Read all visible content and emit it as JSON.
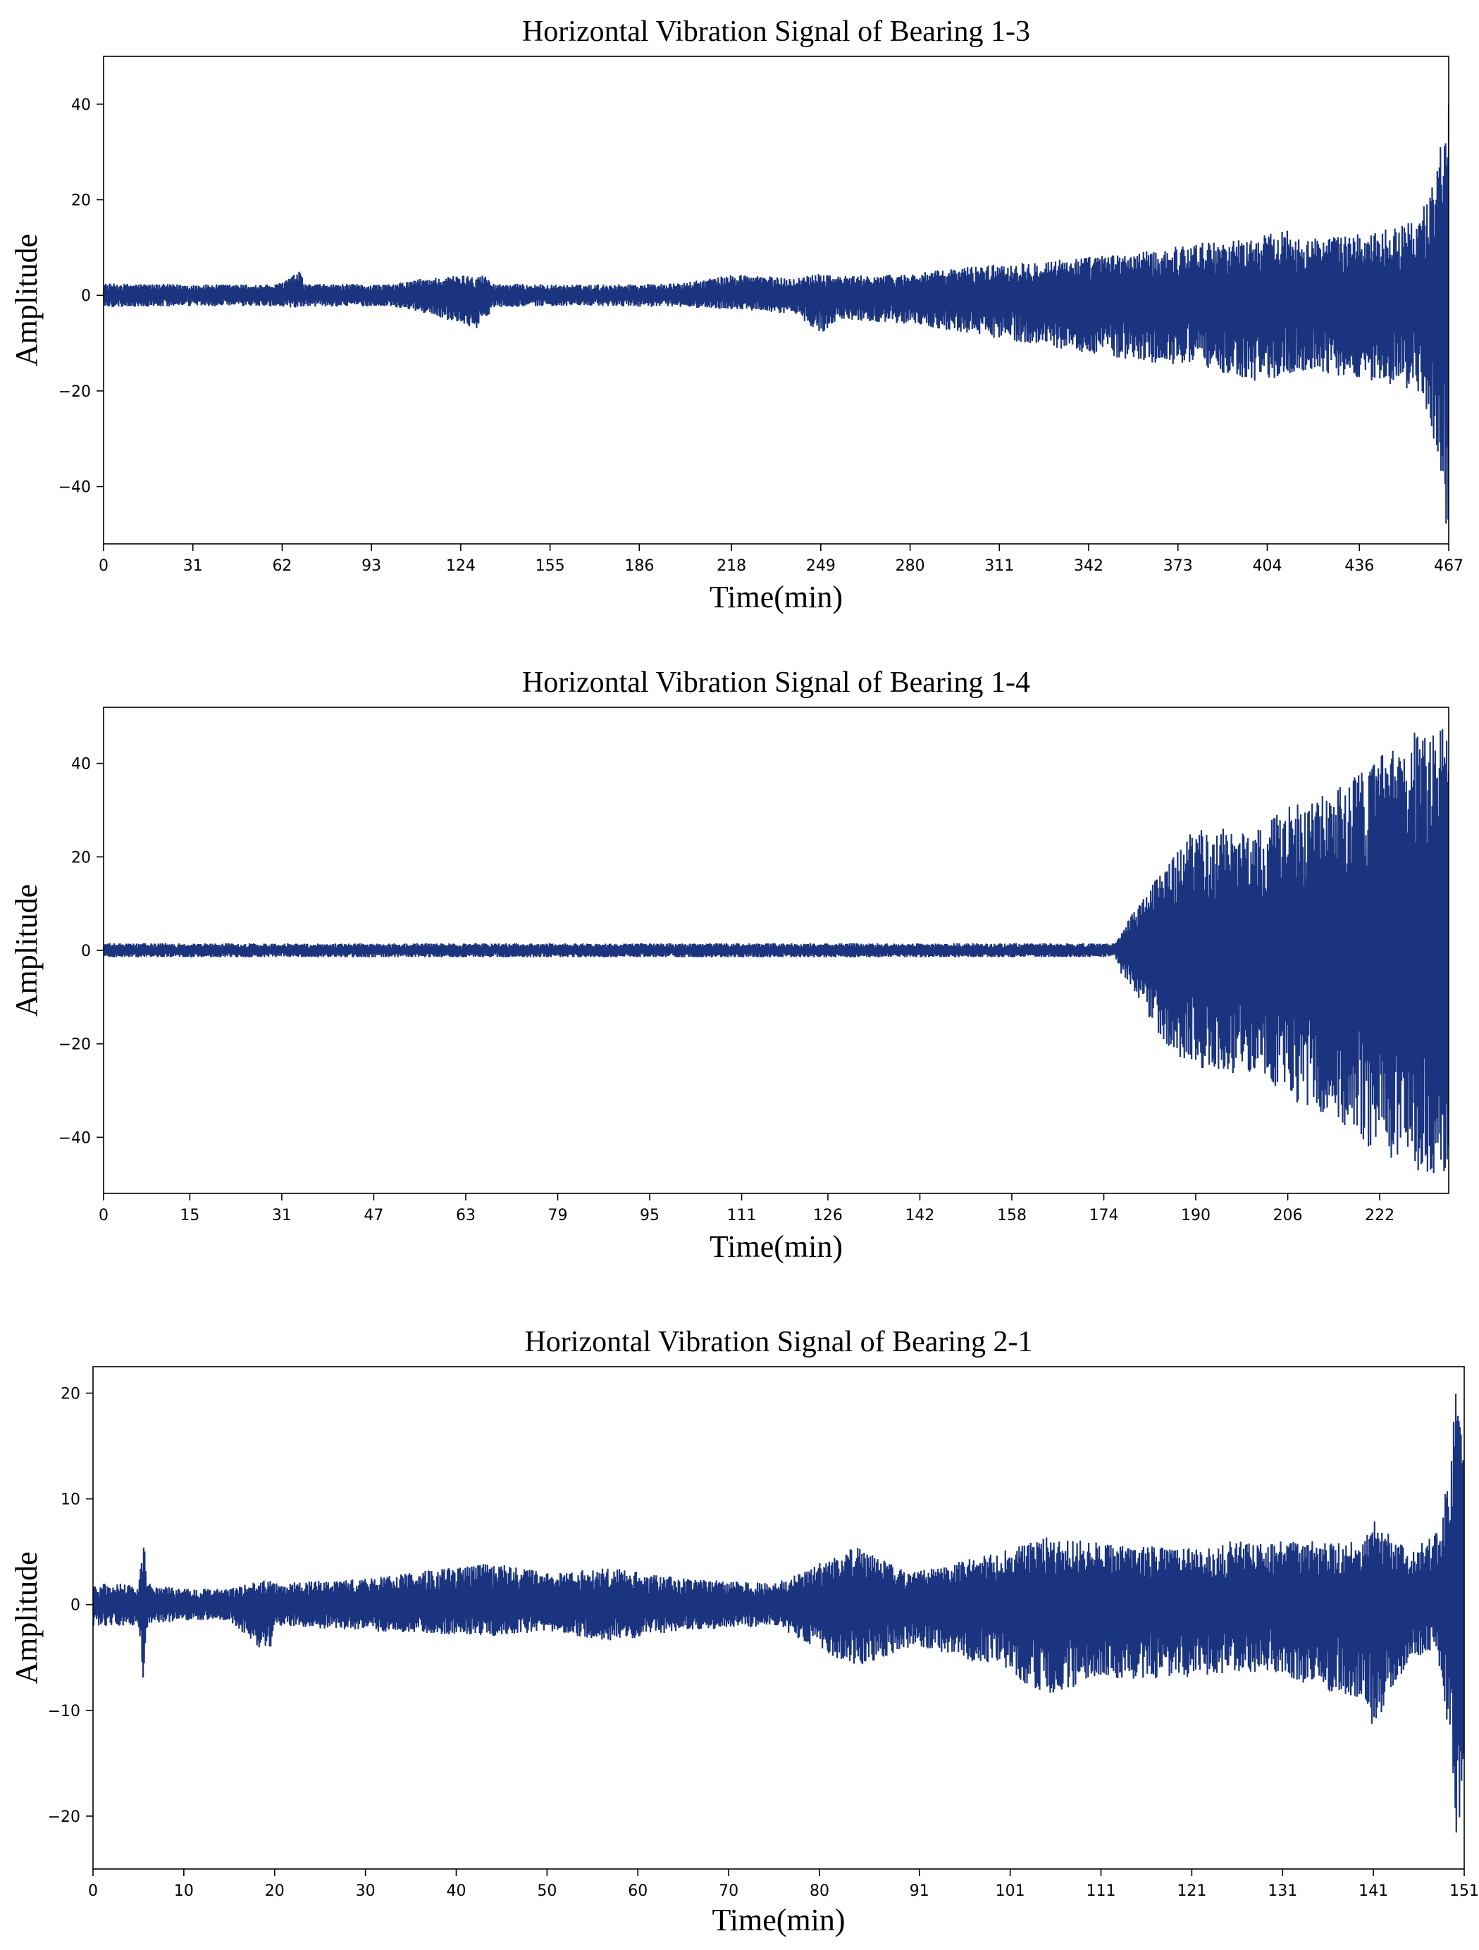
{
  "chart_data": [
    {
      "type": "line",
      "title": "Horizontal Vibration Signal of Bearing 1-3",
      "xlabel": "Time(min)",
      "ylabel": "Amplitude",
      "color": "#1a3480",
      "grid": false,
      "xlim": [
        0,
        467
      ],
      "ylim": [
        -52,
        50
      ],
      "xticks": [
        0,
        31,
        62,
        93,
        124,
        155,
        186,
        218,
        249,
        280,
        311,
        342,
        373,
        404,
        436,
        467
      ],
      "yticks": [
        40,
        20,
        0,
        -20,
        -40
      ],
      "series": [
        {
          "x": [
            0,
            30,
            60,
            68,
            70,
            100,
            110,
            130,
            133,
            135,
            160,
            200,
            220,
            240,
            249,
            255,
            280,
            300,
            320,
            340,
            360,
            380,
            400,
            410,
            420,
            440,
            455,
            460,
            463,
            465,
            466,
            467
          ],
          "upper": [
            2.5,
            2.3,
            2.3,
            5,
            2.4,
            2.3,
            3.5,
            4.5,
            4,
            2.5,
            2.2,
            2.5,
            4.5,
            3.5,
            5,
            4,
            4.5,
            6,
            7,
            8,
            9,
            11,
            12,
            14,
            12,
            13,
            16,
            20,
            28,
            35,
            44,
            44
          ],
          "lower": [
            -2.5,
            -2.3,
            -2.3,
            -3,
            -2.4,
            -2.3,
            -3.5,
            -7,
            -5,
            -2.5,
            -2.2,
            -2.5,
            -3,
            -4,
            -8,
            -5,
            -6,
            -8,
            -10,
            -12,
            -14,
            -15,
            -18,
            -17,
            -16,
            -18,
            -20,
            -25,
            -35,
            -45,
            -48,
            -48
          ]
        }
      ]
    },
    {
      "type": "line",
      "title": "Horizontal Vibration Signal of Bearing 1-4",
      "xlabel": "Time(min)",
      "ylabel": "Amplitude",
      "color": "#1a3480",
      "grid": false,
      "xlim": [
        0,
        234
      ],
      "ylim": [
        -52,
        52
      ],
      "xticks": [
        0,
        15,
        31,
        47,
        63,
        79,
        95,
        111,
        126,
        142,
        158,
        174,
        190,
        206,
        222
      ],
      "yticks": [
        40,
        20,
        0,
        -20,
        -40
      ],
      "series": [
        {
          "x": [
            0,
            30,
            60,
            90,
            120,
            150,
            176,
            177,
            180,
            183,
            186,
            190,
            195,
            200,
            205,
            210,
            215,
            220,
            225,
            230,
            234
          ],
          "upper": [
            1.5,
            1.5,
            1.5,
            1.5,
            1.5,
            1.5,
            1.5,
            4,
            10,
            15,
            20,
            27,
            26,
            25,
            30,
            33,
            35,
            40,
            45,
            48,
            48
          ],
          "lower": [
            -1.5,
            -1.5,
            -1.5,
            -1.5,
            -1.5,
            -1.5,
            -1.5,
            -5,
            -10,
            -17,
            -22,
            -25,
            -26,
            -27,
            -30,
            -35,
            -38,
            -42,
            -45,
            -48,
            -48
          ]
        }
      ]
    },
    {
      "type": "line",
      "title": "Horizontal Vibration Signal of Bearing 2-1",
      "xlabel": "Time(min)",
      "ylabel": "Amplitude",
      "color": "#1a3480",
      "grid": false,
      "xlim": [
        0,
        151
      ],
      "ylim": [
        -25,
        22.5
      ],
      "xticks": [
        0,
        10,
        20,
        30,
        40,
        50,
        60,
        70,
        80,
        91,
        101,
        111,
        121,
        131,
        141,
        151
      ],
      "yticks": [
        20,
        10,
        0,
        -10,
        -20
      ],
      "series": [
        {
          "x": [
            0,
            5,
            5.6,
            6,
            10,
            15,
            19.5,
            20,
            30,
            44,
            50,
            57,
            65,
            75,
            84,
            90,
            95,
            100,
            105,
            110,
            115,
            120,
            125,
            130,
            135,
            140,
            141,
            145,
            148,
            149,
            150,
            151
          ],
          "upper": [
            2,
            2,
            6,
            2,
            1.5,
            1.5,
            2.5,
            2,
            2.5,
            4,
            3,
            3.5,
            2.5,
            2,
            5.5,
            3,
            4,
            5,
            6.5,
            6,
            5.5,
            5.5,
            6,
            6,
            6,
            6,
            8,
            5,
            7,
            12,
            20.5,
            16
          ],
          "lower": [
            -2,
            -2,
            -8,
            -2,
            -1.5,
            -1.5,
            -5,
            -2,
            -2.5,
            -3,
            -2.5,
            -3.5,
            -2.5,
            -2,
            -6,
            -4,
            -5,
            -6,
            -9,
            -7,
            -7,
            -7,
            -6.5,
            -6.5,
            -8,
            -9,
            -12,
            -5,
            -5,
            -10,
            -22.5,
            -19
          ]
        }
      ]
    }
  ]
}
